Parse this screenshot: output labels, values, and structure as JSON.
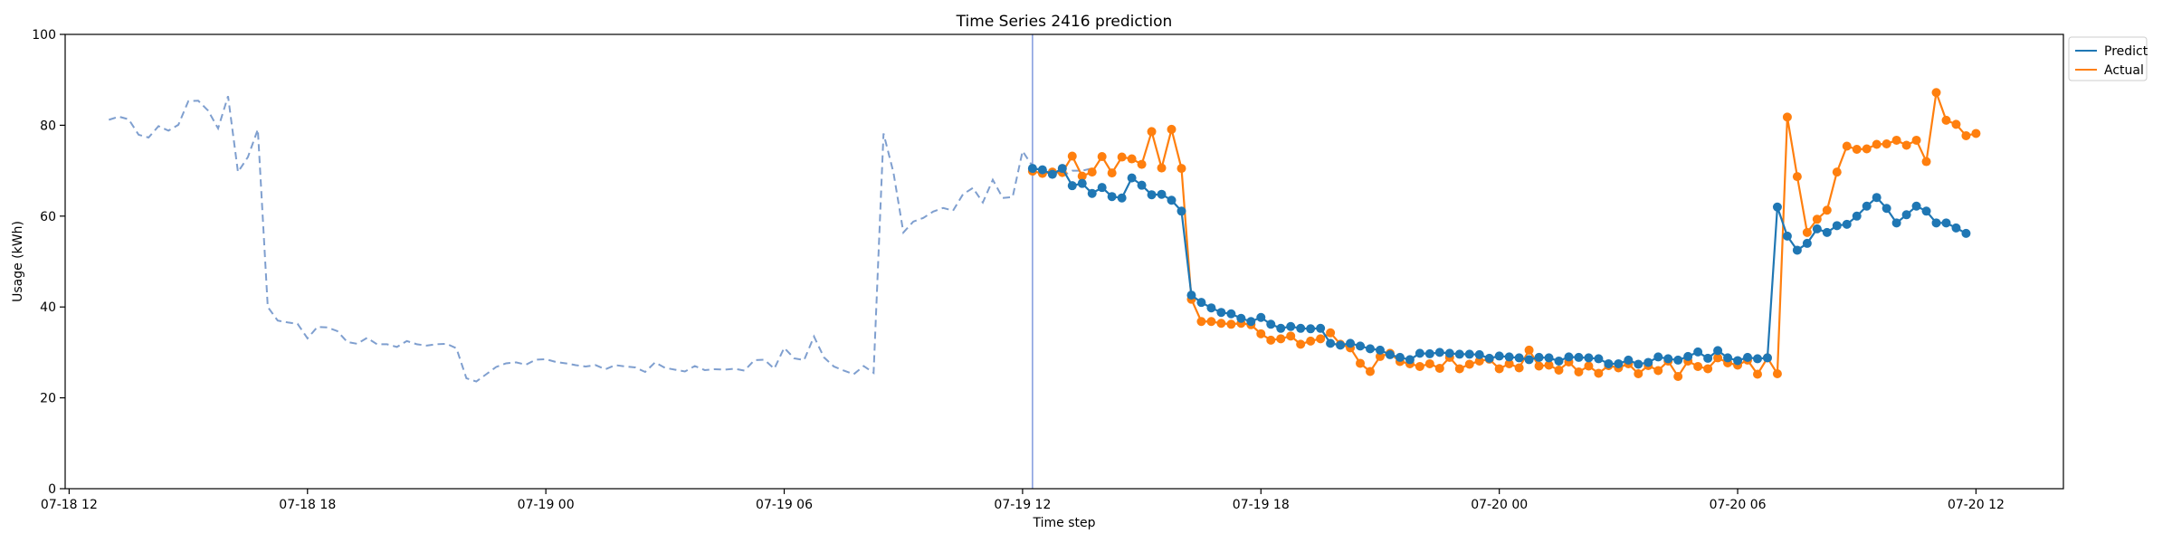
{
  "chart_data": {
    "type": "line",
    "title": "Time Series 2416 prediction",
    "xlabel": "Time step",
    "ylabel": "Usage (kWh)",
    "ylim": [
      0,
      100
    ],
    "yticks": [
      0,
      20,
      40,
      60,
      80,
      100
    ],
    "xticks": [
      {
        "label": "07-18 12",
        "hours": 12
      },
      {
        "label": "07-18 18",
        "hours": 18
      },
      {
        "label": "07-19 00",
        "hours": 24
      },
      {
        "label": "07-19 06",
        "hours": 30
      },
      {
        "label": "07-19 12",
        "hours": 36
      },
      {
        "label": "07-19 18",
        "hours": 42
      },
      {
        "label": "07-20 00",
        "hours": 48
      },
      {
        "label": "07-20 06",
        "hours": 54
      },
      {
        "label": "07-20 12",
        "hours": 60
      }
    ],
    "xlim_hours": [
      11.9,
      62.2
    ],
    "time_resolution": "15 min",
    "history_start_hours": 13.0,
    "forecast_start_hours": 36.25,
    "split_line_hours": 36.25,
    "legend_position": "upper right, outside plot",
    "series": [
      {
        "name": "Predict",
        "color": "#1f77b4",
        "values": [
          70.5,
          70.2,
          69.2,
          70.5,
          66.7,
          67.2,
          65.0,
          66.3,
          64.3,
          64.0,
          68.4,
          66.8,
          64.7,
          64.8,
          63.5,
          61.1,
          42.6,
          41.0,
          39.8,
          38.8,
          38.5,
          37.5,
          36.8,
          37.7,
          36.2,
          35.3,
          35.7,
          35.3,
          35.2,
          35.3,
          32.0,
          31.6,
          32.0,
          31.4,
          30.8,
          30.5,
          29.5,
          28.9,
          28.4,
          29.8,
          29.7,
          30.0,
          29.8,
          29.6,
          29.6,
          29.5,
          28.7,
          29.2,
          29.0,
          28.8,
          28.4,
          28.9,
          28.8,
          28.1,
          29.0,
          28.9,
          28.8,
          28.6,
          27.5,
          27.5,
          28.3,
          27.4,
          27.8,
          29.0,
          28.6,
          28.3,
          29.1,
          30.1,
          28.7,
          30.4,
          28.8,
          28.2,
          28.9,
          28.6,
          28.8,
          62.0,
          55.6,
          52.5,
          54.0,
          57.2,
          56.4,
          57.9,
          58.2,
          60.0,
          62.2,
          64.1,
          61.7,
          58.5,
          60.3,
          62.2,
          61.1,
          58.5,
          58.5,
          57.4,
          56.2
        ]
      },
      {
        "name": "Actual",
        "color": "#ff7f0e",
        "values": [
          69.9,
          69.4,
          69.7,
          69.6,
          73.2,
          68.8,
          69.7,
          73.1,
          69.5,
          73.0,
          72.6,
          71.4,
          78.6,
          70.6,
          79.1,
          70.5,
          41.7,
          36.8,
          36.8,
          36.4,
          36.2,
          36.4,
          36.1,
          34.1,
          32.7,
          33.0,
          33.6,
          31.8,
          32.5,
          33.0,
          34.3,
          31.8,
          31.0,
          27.6,
          25.8,
          29.1,
          29.8,
          28.0,
          27.5,
          26.9,
          27.5,
          26.5,
          28.9,
          26.4,
          27.4,
          28.1,
          28.5,
          26.4,
          27.5,
          26.6,
          30.5,
          27.0,
          27.2,
          26.1,
          27.9,
          25.7,
          27.0,
          25.4,
          27.1,
          26.6,
          27.5,
          25.3,
          27.1,
          26.0,
          28.1,
          24.7,
          28.1,
          26.9,
          26.4,
          28.8,
          27.7,
          27.2,
          28.3,
          25.2,
          28.8,
          25.3,
          81.8,
          68.7,
          56.4,
          59.3,
          61.3,
          69.7,
          75.4,
          74.7,
          74.8,
          75.8,
          75.9,
          76.7,
          75.6,
          76.7,
          72.0,
          87.2,
          81.1,
          80.2,
          77.7,
          78.2
        ]
      },
      {
        "name": "",
        "style": "dashed",
        "color": "#7f9fcf",
        "values": [
          81.2,
          81.9,
          81.3,
          77.9,
          77.3,
          79.8,
          78.8,
          80.1,
          85.3,
          85.4,
          83.2,
          79.3,
          86.4,
          69.7,
          73.0,
          79.1,
          40.0,
          37.0,
          36.6,
          36.3,
          33.1,
          35.6,
          35.5,
          34.7,
          32.3,
          31.9,
          33.2,
          31.8,
          31.8,
          31.2,
          32.5,
          31.8,
          31.5,
          31.8,
          31.9,
          30.9,
          24.3,
          23.6,
          25.2,
          26.8,
          27.6,
          27.8,
          27.3,
          28.4,
          28.5,
          27.9,
          27.6,
          27.2,
          26.9,
          27.2,
          26.3,
          27.2,
          26.9,
          26.7,
          25.7,
          27.8,
          26.6,
          26.2,
          25.8,
          27.0,
          26.1,
          26.3,
          26.2,
          26.4,
          26.0,
          28.3,
          28.4,
          26.4,
          31.0,
          28.7,
          28.3,
          33.5,
          28.9,
          26.9,
          26.0,
          25.2,
          27.0,
          25.5,
          78.2,
          69.6,
          56.4,
          58.8,
          59.6,
          61.0,
          61.8,
          61.2,
          64.8,
          66.2,
          63.0,
          68.0,
          64.0,
          64.2,
          74.3,
          71.0,
          70.2,
          70.0,
          68.8,
          70.0,
          70.0,
          70.5
        ]
      }
    ]
  }
}
